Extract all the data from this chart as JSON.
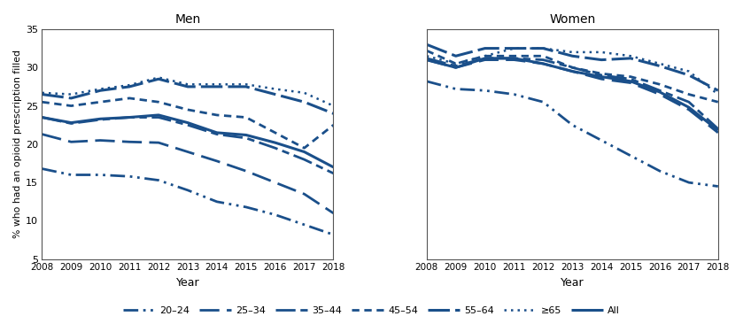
{
  "years": [
    2008,
    2009,
    2010,
    2011,
    2012,
    2013,
    2014,
    2015,
    2016,
    2017,
    2018
  ],
  "men": {
    "20-24": [
      16.8,
      16.0,
      16.0,
      15.8,
      15.3,
      14.0,
      12.5,
      11.8,
      10.8,
      9.5,
      8.2
    ],
    "25-34": [
      21.3,
      20.3,
      20.5,
      20.3,
      20.2,
      19.0,
      17.8,
      16.5,
      15.0,
      13.5,
      11.0
    ],
    "35-44": [
      23.5,
      22.7,
      23.2,
      23.5,
      23.5,
      22.5,
      21.3,
      20.8,
      19.5,
      18.0,
      16.2
    ],
    "45-54": [
      25.5,
      25.0,
      25.5,
      26.0,
      25.5,
      24.5,
      23.8,
      23.5,
      21.5,
      19.5,
      22.5
    ],
    "55-64": [
      26.5,
      26.0,
      27.0,
      27.5,
      28.5,
      27.5,
      27.5,
      27.5,
      26.5,
      25.5,
      24.0
    ],
    "ge65": [
      26.7,
      26.5,
      27.2,
      27.7,
      28.7,
      27.8,
      27.8,
      27.8,
      27.2,
      26.7,
      25.0
    ],
    "All": [
      23.5,
      22.8,
      23.3,
      23.5,
      23.8,
      22.8,
      21.5,
      21.2,
      20.2,
      19.0,
      17.0
    ]
  },
  "women": {
    "20-24": [
      28.2,
      27.2,
      27.0,
      26.5,
      25.5,
      22.5,
      20.5,
      18.5,
      16.5,
      15.0,
      14.5
    ],
    "25-34": [
      31.0,
      30.0,
      31.0,
      31.0,
      30.5,
      29.5,
      28.5,
      28.0,
      26.5,
      24.5,
      21.5
    ],
    "35-44": [
      31.2,
      30.2,
      31.2,
      31.2,
      31.0,
      30.0,
      29.0,
      28.5,
      27.0,
      25.5,
      22.0
    ],
    "45-54": [
      32.2,
      30.5,
      31.5,
      31.5,
      31.5,
      30.0,
      29.2,
      28.8,
      27.8,
      26.5,
      25.5
    ],
    "55-64": [
      33.0,
      31.5,
      32.5,
      32.5,
      32.5,
      31.5,
      31.0,
      31.2,
      30.2,
      29.0,
      27.0
    ],
    "ge65": [
      31.5,
      30.5,
      31.5,
      32.5,
      32.5,
      32.0,
      32.0,
      31.5,
      30.5,
      29.5,
      26.5
    ],
    "All": [
      31.0,
      30.0,
      31.2,
      31.2,
      30.5,
      29.5,
      28.8,
      28.2,
      26.8,
      24.8,
      21.8
    ]
  },
  "line_color": "#1a4f8a",
  "ylim": [
    5,
    35
  ],
  "yticks": [
    5,
    10,
    15,
    20,
    25,
    30,
    35
  ],
  "title_men": "Men",
  "title_women": "Women",
  "xlabel": "Year",
  "ylabel": "% who had an opioid prescription filled",
  "legend_labels": [
    "20–24",
    "25–34",
    "35–44",
    "45–54",
    "55–64",
    "≥65",
    "All"
  ]
}
